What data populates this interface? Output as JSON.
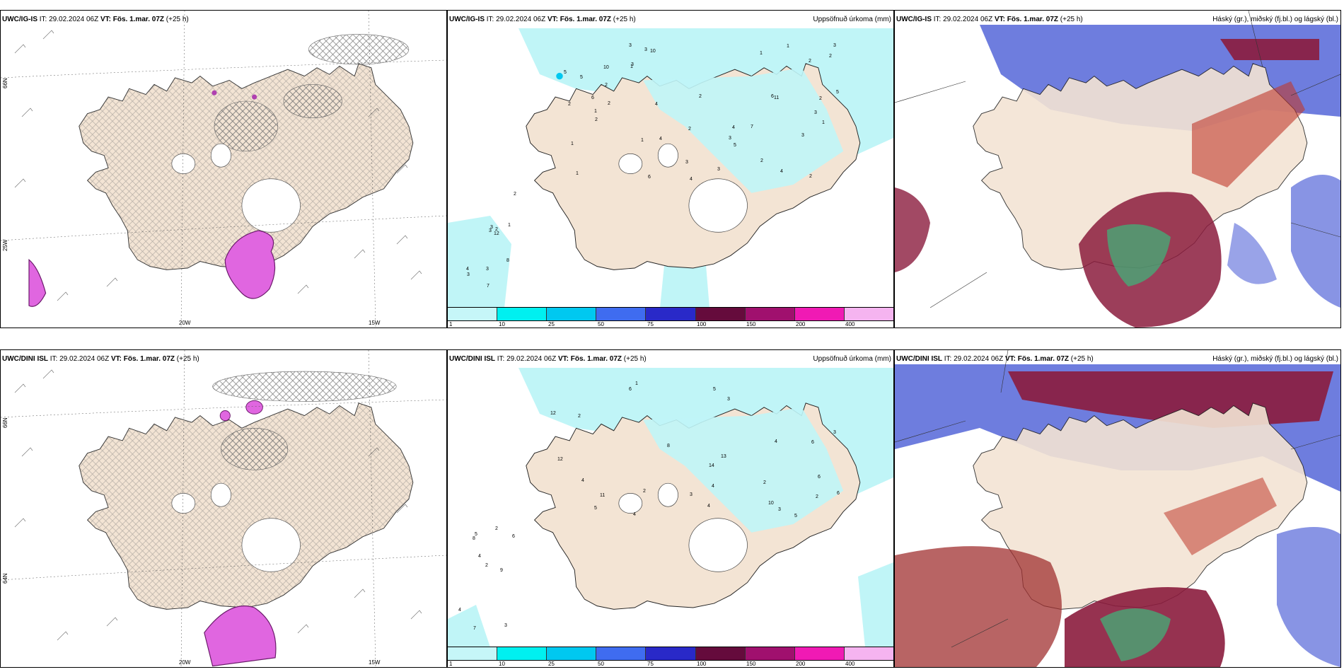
{
  "rows": [
    {
      "left": {
        "model": "UWC/IG-IS",
        "it": "IT: 29.02.2024 06Z",
        "vt": "VT: Fös. 1.mar. 07Z",
        "lead": "(+25 h)"
      },
      "mid": {
        "model": "UWC/IG-IS",
        "it": "IT: 29.02.2024 06Z",
        "vt": "VT: Fös. 1.mar. 07Z",
        "lead": "(+25 h)",
        "title": "Uppsöfnuð úrkoma (mm)"
      },
      "right": {
        "model": "UWC/IG-IS",
        "it": "IT: 29.02.2024 06Z",
        "vt": "VT: Fös. 1.mar. 07Z",
        "lead": "(+25 h)",
        "title": "Háský (gr.), miðský (fj.bl.) og lágský (bl.)"
      }
    },
    {
      "left": {
        "model": "UWC/DINI ISL",
        "it": "IT: 29.02.2024 06Z",
        "vt": "VT: Fös. 1.mar. 07Z",
        "lead": "(+25 h)"
      },
      "mid": {
        "model": "UWC/DINI ISL",
        "it": "IT: 29.02.2024 06Z",
        "vt": "VT: Fös. 1.mar. 07Z",
        "lead": "(+25 h)",
        "title": "Uppsöfnuð úrkoma (mm)"
      },
      "right": {
        "model": "UWC/DINI ISL",
        "it": "IT: 29.02.2024 06Z",
        "vt": "VT: Fös. 1.mar. 07Z",
        "lead": "(+25 h)",
        "title": "Háský (gr.), miðský (fj.bl.) og lágský (bl.)"
      }
    }
  ],
  "axis_labels": {
    "lat_66": "66N",
    "lat_64": "64N",
    "lat_63": "63N",
    "lon_20": "20W",
    "lon_15": "15W",
    "lat_25w": "25W"
  },
  "legend": {
    "ticks": [
      "1",
      "10",
      "25",
      "50",
      "75",
      "100",
      "150",
      "200",
      "400"
    ],
    "colors": [
      "#c6f6f8",
      "#00f0f0",
      "#00c8f0",
      "#3f6cf0",
      "#2929c8",
      "#650b3c",
      "#a0106e",
      "#f01ab4",
      "#f5b4f0"
    ]
  },
  "precip_labels_top": [
    "2",
    "2",
    "2",
    "1",
    "1",
    "1",
    "3",
    "3",
    "2",
    "7",
    "6",
    "5",
    "3",
    "4",
    "11",
    "10",
    "5",
    "4",
    "8",
    "4",
    "3",
    "3",
    "2",
    "2",
    "2",
    "3",
    "2",
    "2",
    "4",
    "4",
    "3",
    "3",
    "2",
    "2",
    "1",
    "1",
    "1",
    "3",
    "6",
    "4",
    "3",
    "2",
    "1",
    "5",
    "3",
    "3",
    "10",
    "12",
    "2",
    "1",
    "5",
    "7",
    "6",
    "3",
    "1"
  ],
  "precip_labels_bottom": [
    "3",
    "2",
    "6",
    "5",
    "4",
    "6",
    "4",
    "12",
    "2",
    "4",
    "5",
    "8",
    "10",
    "12",
    "14",
    "9",
    "6",
    "5",
    "4",
    "6",
    "4",
    "7",
    "4",
    "3",
    "8",
    "5",
    "3",
    "4",
    "2",
    "6",
    "3",
    "2",
    "2",
    "11",
    "13",
    "3",
    "2",
    "1"
  ],
  "colors": {
    "land": "#f3e4d4",
    "precip_light": "#c0f5f7",
    "precip_mid": "#a0eff3",
    "snow": "#e066e0",
    "cloud_high": "#5566d8",
    "cloud_mid": "#8b1c3d",
    "cloud_low": "#3cb87a"
  }
}
